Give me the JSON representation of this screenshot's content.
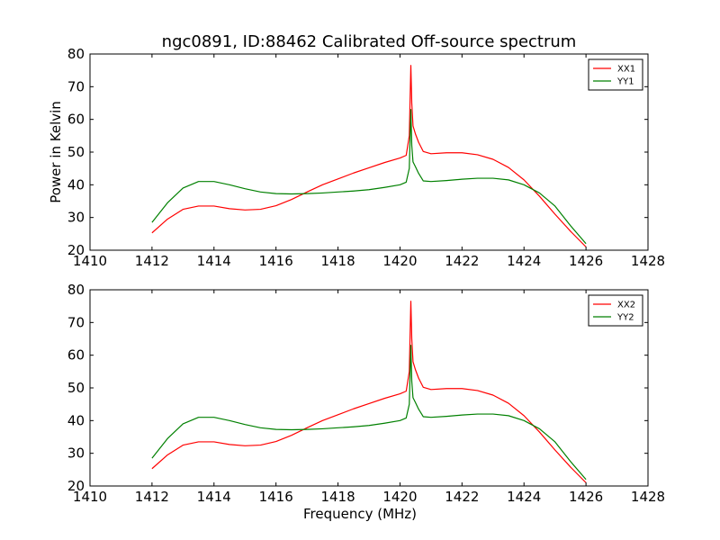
{
  "title": "ngc0891, ID:88462 Calibrated Off-source spectrum",
  "colors": {
    "xx": "#ff0000",
    "yy": "#008000"
  },
  "chart_data": [
    {
      "type": "line",
      "title": "ngc0891, ID:88462 Calibrated Off-source spectrum",
      "xlabel": "",
      "ylabel": "Power in Kelvin",
      "xlim": [
        1410,
        1428
      ],
      "ylim": [
        20,
        80
      ],
      "xticks": [
        1410,
        1412,
        1414,
        1416,
        1418,
        1420,
        1422,
        1424,
        1426,
        1428
      ],
      "yticks": [
        20,
        30,
        40,
        50,
        60,
        70,
        80
      ],
      "grid": false,
      "legend": "top-right",
      "series": [
        {
          "name": "XX1",
          "color": "#ff0000",
          "x": [
            1412.0,
            1412.5,
            1413.0,
            1413.5,
            1414.0,
            1414.5,
            1415.0,
            1415.5,
            1416.0,
            1416.5,
            1417.0,
            1417.5,
            1418.0,
            1418.5,
            1419.0,
            1419.5,
            1420.0,
            1420.2,
            1420.3,
            1420.35,
            1420.38,
            1420.42,
            1420.5,
            1420.6,
            1420.75,
            1421.0,
            1421.5,
            1422.0,
            1422.5,
            1423.0,
            1423.5,
            1424.0,
            1424.5,
            1425.0,
            1425.5,
            1426.0
          ],
          "y": [
            25.3,
            29.5,
            32.5,
            33.5,
            33.5,
            32.7,
            32.3,
            32.5,
            33.6,
            35.5,
            37.8,
            40.0,
            41.8,
            43.6,
            45.2,
            46.8,
            48.2,
            49.0,
            55.0,
            76.5,
            65.0,
            58.0,
            55.5,
            53.0,
            50.2,
            49.5,
            49.8,
            49.8,
            49.2,
            47.8,
            45.3,
            41.5,
            36.5,
            31.0,
            25.8,
            21.0
          ]
        },
        {
          "name": "YY1",
          "color": "#008000",
          "x": [
            1412.0,
            1412.5,
            1413.0,
            1413.5,
            1414.0,
            1414.5,
            1415.0,
            1415.5,
            1416.0,
            1416.5,
            1417.0,
            1417.5,
            1418.0,
            1418.5,
            1419.0,
            1419.5,
            1420.0,
            1420.2,
            1420.3,
            1420.35,
            1420.38,
            1420.42,
            1420.5,
            1420.6,
            1420.75,
            1421.0,
            1421.5,
            1422.0,
            1422.5,
            1423.0,
            1423.5,
            1424.0,
            1424.5,
            1425.0,
            1425.5,
            1426.0
          ],
          "y": [
            28.5,
            34.5,
            39.0,
            41.0,
            41.0,
            40.0,
            38.8,
            37.8,
            37.3,
            37.2,
            37.3,
            37.5,
            37.8,
            38.1,
            38.5,
            39.2,
            40.0,
            40.8,
            45.0,
            63.0,
            52.0,
            47.0,
            45.5,
            43.5,
            41.2,
            41.0,
            41.3,
            41.7,
            42.0,
            42.0,
            41.5,
            40.0,
            37.5,
            33.5,
            27.5,
            22.0
          ]
        }
      ]
    },
    {
      "type": "line",
      "title": "",
      "xlabel": "Frequency (MHz)",
      "ylabel": "",
      "xlim": [
        1410,
        1428
      ],
      "ylim": [
        20,
        80
      ],
      "xticks": [
        1410,
        1412,
        1414,
        1416,
        1418,
        1420,
        1422,
        1424,
        1426,
        1428
      ],
      "yticks": [
        20,
        30,
        40,
        50,
        60,
        70,
        80
      ],
      "grid": false,
      "legend": "top-right",
      "series": [
        {
          "name": "XX2",
          "color": "#ff0000",
          "x": [
            1412.0,
            1412.5,
            1413.0,
            1413.5,
            1414.0,
            1414.5,
            1415.0,
            1415.5,
            1416.0,
            1416.5,
            1417.0,
            1417.5,
            1418.0,
            1418.5,
            1419.0,
            1419.5,
            1420.0,
            1420.2,
            1420.3,
            1420.35,
            1420.38,
            1420.42,
            1420.5,
            1420.6,
            1420.75,
            1421.0,
            1421.5,
            1422.0,
            1422.5,
            1423.0,
            1423.5,
            1424.0,
            1424.5,
            1425.0,
            1425.5,
            1426.0
          ],
          "y": [
            25.3,
            29.5,
            32.5,
            33.5,
            33.5,
            32.7,
            32.3,
            32.5,
            33.6,
            35.5,
            37.8,
            40.0,
            41.8,
            43.6,
            45.2,
            46.8,
            48.2,
            49.0,
            55.0,
            76.5,
            65.0,
            58.0,
            55.5,
            53.0,
            50.2,
            49.5,
            49.8,
            49.8,
            49.2,
            47.8,
            45.3,
            41.5,
            36.5,
            31.0,
            25.8,
            21.0
          ]
        },
        {
          "name": "YY2",
          "color": "#008000",
          "x": [
            1412.0,
            1412.5,
            1413.0,
            1413.5,
            1414.0,
            1414.5,
            1415.0,
            1415.5,
            1416.0,
            1416.5,
            1417.0,
            1417.5,
            1418.0,
            1418.5,
            1419.0,
            1419.5,
            1420.0,
            1420.2,
            1420.3,
            1420.35,
            1420.38,
            1420.42,
            1420.5,
            1420.6,
            1420.75,
            1421.0,
            1421.5,
            1422.0,
            1422.5,
            1423.0,
            1423.5,
            1424.0,
            1424.5,
            1425.0,
            1425.5,
            1426.0
          ],
          "y": [
            28.5,
            34.5,
            39.0,
            41.0,
            41.0,
            40.0,
            38.8,
            37.8,
            37.3,
            37.2,
            37.3,
            37.5,
            37.8,
            38.1,
            38.5,
            39.2,
            40.0,
            40.8,
            45.0,
            63.0,
            52.0,
            47.0,
            45.5,
            43.5,
            41.2,
            41.0,
            41.3,
            41.7,
            42.0,
            42.0,
            41.5,
            40.0,
            37.5,
            33.5,
            27.5,
            22.0
          ]
        }
      ]
    }
  ]
}
